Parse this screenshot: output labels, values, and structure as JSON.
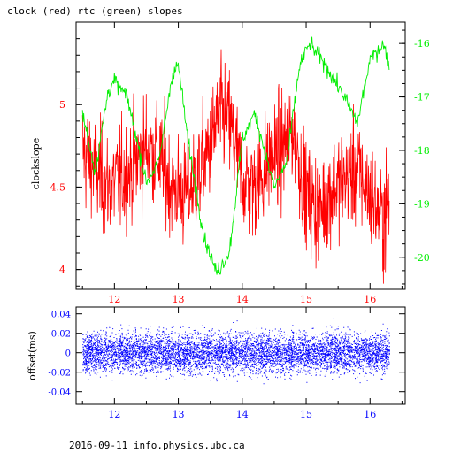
{
  "title": "clock (red) rtc (green) slopes",
  "footer": "2016-09-11 info.physics.ubc.ca",
  "colors": {
    "clock": "#ff0000",
    "rtc": "#00ee00",
    "offset": "#0000ff"
  },
  "chart_data": [
    {
      "type": "line",
      "title": "clock (red) rtc (green) slopes",
      "xlabel": "",
      "ylabel": "clockslope",
      "xlim": [
        11.4,
        16.55
      ],
      "ylim": [
        3.88,
        5.5
      ],
      "y2lim": [
        -20.6,
        -15.6
      ],
      "grid": false,
      "x_ticks": [
        "12",
        "13",
        "14",
        "15",
        "16"
      ],
      "y_ticks": [
        "4",
        "4.5",
        "5"
      ],
      "y2_ticks": [
        "-16",
        "-17",
        "-18",
        "-19",
        "-20"
      ],
      "series": [
        {
          "name": "clock",
          "color": "red",
          "axis": "left",
          "x": [
            11.5,
            11.7,
            11.9,
            12.1,
            12.3,
            12.5,
            12.7,
            12.9,
            13.1,
            13.3,
            13.5,
            13.65,
            13.8,
            14.0,
            14.2,
            14.4,
            14.6,
            14.8,
            15.0,
            15.2,
            15.4,
            15.6,
            15.8,
            16.0,
            16.2,
            16.3
          ],
          "values": [
            4.72,
            4.6,
            4.5,
            4.55,
            4.62,
            4.75,
            4.68,
            4.5,
            4.45,
            4.55,
            4.75,
            4.95,
            4.9,
            4.55,
            4.5,
            4.65,
            4.72,
            4.85,
            4.45,
            4.35,
            4.48,
            4.55,
            4.6,
            4.45,
            4.3,
            4.42
          ],
          "noise": 0.18
        },
        {
          "name": "rtc",
          "color": "green",
          "axis": "right",
          "x": [
            11.5,
            11.7,
            11.9,
            12.0,
            12.2,
            12.5,
            12.7,
            12.9,
            13.0,
            13.15,
            13.4,
            13.6,
            13.8,
            14.0,
            14.2,
            14.5,
            14.7,
            14.9,
            15.05,
            15.3,
            15.6,
            15.8,
            16.0,
            16.2,
            16.3
          ],
          "values": [
            -17.3,
            -18.4,
            -16.9,
            -16.7,
            -17.0,
            -18.6,
            -18.2,
            -16.6,
            -16.4,
            -17.8,
            -19.6,
            -20.3,
            -19.9,
            -17.8,
            -17.3,
            -18.7,
            -18.2,
            -16.4,
            -16.0,
            -16.4,
            -17.0,
            -17.5,
            -16.3,
            -16.0,
            -16.4
          ],
          "noise": 0.12
        }
      ]
    },
    {
      "type": "scatter",
      "title": "",
      "xlabel": "",
      "ylabel": "offset(ms)",
      "xlim": [
        11.4,
        16.55
      ],
      "ylim": [
        -0.053,
        0.047
      ],
      "grid": false,
      "x_ticks": [
        "12",
        "13",
        "14",
        "15",
        "16"
      ],
      "y_ticks": [
        "0.04",
        "0.02",
        "0",
        "-0.02",
        "-0.04"
      ],
      "series": [
        {
          "name": "offset",
          "color": "blue",
          "x_range": [
            11.5,
            16.3
          ],
          "center": 0.0,
          "spread": 0.012,
          "point_count": 7000
        }
      ]
    }
  ]
}
